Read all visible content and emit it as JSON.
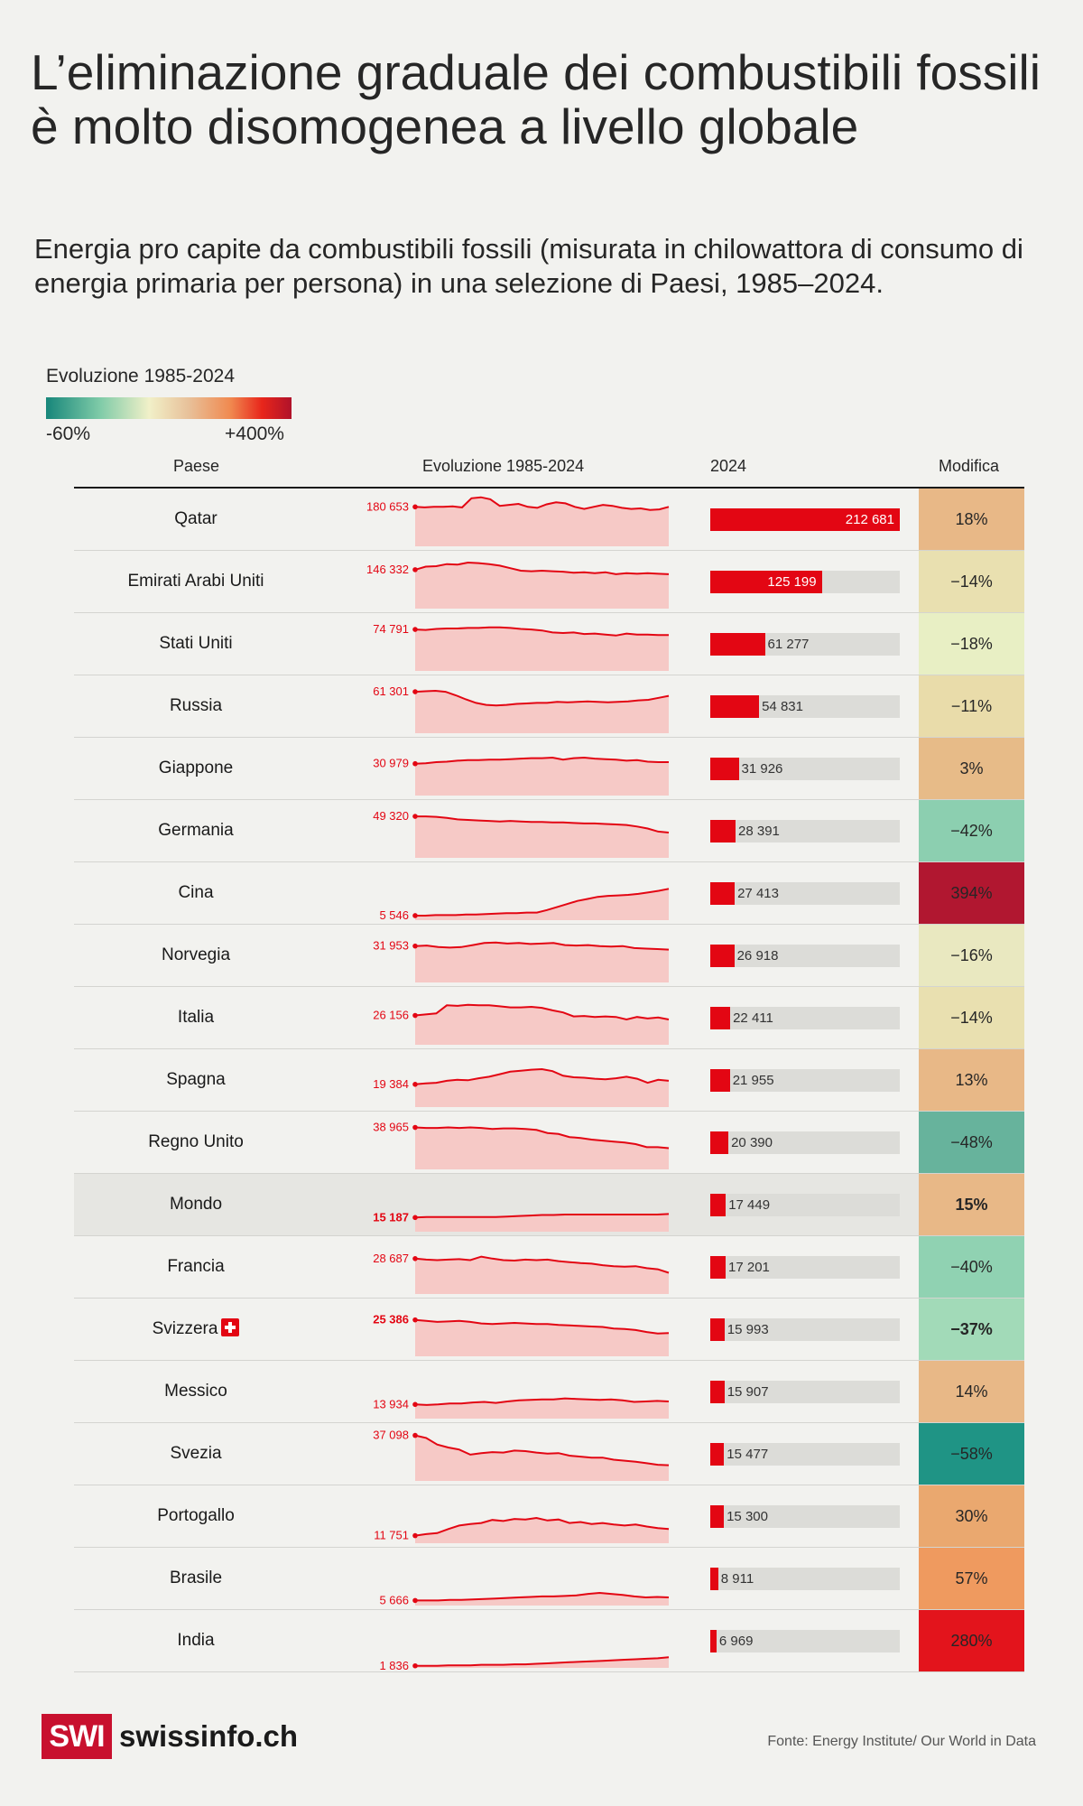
{
  "title": "L’eliminazione graduale dei combustibili fossili è molto disomogenea a livello globale",
  "subtitle": "Energia pro capite da combustibili fossili (misurata in chilowattora di consumo di energia primaria per persona) in una selezione di Paesi, 1985–2024.",
  "legend": {
    "title": "Evoluzione 1985-2024",
    "min_label": "-60%",
    "max_label": "+400%"
  },
  "columns": {
    "country": "Paese",
    "evolution": "Evoluzione 1985-2024",
    "year": "2024",
    "change": "Modifica"
  },
  "colors": {
    "accent": "#e30613",
    "sparkline_fill": "#f6c9c6",
    "bar_track": "#dcdcd8"
  },
  "chart_data": {
    "type": "table",
    "bar_max": 212681,
    "rows": [
      {
        "country": "Qatar",
        "start_1985": 180653,
        "start_label": "180 653",
        "value_2024": 212681,
        "value_label": "212 681",
        "change": "18%",
        "change_color": "#e8b887",
        "trend": [
          0.78,
          0.77,
          0.78,
          0.78,
          0.79,
          0.77,
          0.95,
          0.97,
          0.93,
          0.8,
          0.82,
          0.84,
          0.78,
          0.76,
          0.83,
          0.87,
          0.85,
          0.78,
          0.74,
          0.78,
          0.82,
          0.8,
          0.76,
          0.74,
          0.75,
          0.72,
          0.73,
          0.78
        ]
      },
      {
        "country": "Emirati Arabi Uniti",
        "start_1985": 146332,
        "start_label": "146 332",
        "value_2024": 125199,
        "value_label": "125 199",
        "change": "−14%",
        "change_color": "#e9e0b0",
        "trend": [
          0.77,
          0.83,
          0.84,
          0.88,
          0.87,
          0.91,
          0.9,
          0.88,
          0.85,
          0.8,
          0.75,
          0.74,
          0.75,
          0.74,
          0.73,
          0.71,
          0.72,
          0.7,
          0.72,
          0.68,
          0.7,
          0.69,
          0.7,
          0.69,
          0.68
        ]
      },
      {
        "country": "Stati Uniti",
        "start_1985": 74791,
        "start_label": "74 791",
        "value_2024": 61277,
        "value_label": "61 277",
        "change": "−18%",
        "change_color": "#e8efc4",
        "trend": [
          0.82,
          0.81,
          0.83,
          0.84,
          0.84,
          0.85,
          0.85,
          0.86,
          0.86,
          0.85,
          0.83,
          0.82,
          0.8,
          0.76,
          0.75,
          0.76,
          0.73,
          0.74,
          0.72,
          0.7,
          0.74,
          0.72,
          0.72,
          0.71,
          0.71
        ]
      },
      {
        "country": "Russia",
        "start_1985": 61301,
        "start_label": "61 301",
        "value_2024": 54831,
        "value_label": "54 831",
        "change": "−11%",
        "change_color": "#e9dcaa",
        "trend": [
          0.82,
          0.83,
          0.84,
          0.82,
          0.75,
          0.67,
          0.6,
          0.56,
          0.55,
          0.56,
          0.58,
          0.59,
          0.6,
          0.6,
          0.62,
          0.61,
          0.62,
          0.63,
          0.62,
          0.61,
          0.62,
          0.63,
          0.65,
          0.66,
          0.7,
          0.74
        ]
      },
      {
        "country": "Giappone",
        "start_1985": 30979,
        "start_label": "30 979",
        "value_2024": 31926,
        "value_label": "31 926",
        "change": "3%",
        "change_color": "#e7bb88",
        "trend": [
          0.63,
          0.64,
          0.66,
          0.67,
          0.69,
          0.7,
          0.7,
          0.71,
          0.71,
          0.72,
          0.73,
          0.74,
          0.74,
          0.75,
          0.71,
          0.74,
          0.75,
          0.73,
          0.72,
          0.71,
          0.69,
          0.7,
          0.67,
          0.66,
          0.66
        ]
      },
      {
        "country": "Germania",
        "start_1985": 49320,
        "start_label": "49 320",
        "value_2024": 28391,
        "value_label": "28 391",
        "change": "−42%",
        "change_color": "#8ccfb0",
        "trend": [
          0.82,
          0.82,
          0.81,
          0.79,
          0.76,
          0.75,
          0.74,
          0.73,
          0.72,
          0.73,
          0.72,
          0.71,
          0.71,
          0.7,
          0.7,
          0.69,
          0.68,
          0.68,
          0.67,
          0.66,
          0.65,
          0.62,
          0.58,
          0.52,
          0.5
        ]
      },
      {
        "country": "Cina",
        "start_1985": 5546,
        "start_label": "5 546",
        "value_2024": 27413,
        "value_label": "27 413",
        "change": "394%",
        "change_color": "#b11730",
        "trend": [
          0.09,
          0.09,
          0.1,
          0.1,
          0.1,
          0.11,
          0.11,
          0.12,
          0.13,
          0.14,
          0.14,
          0.15,
          0.15,
          0.2,
          0.26,
          0.32,
          0.38,
          0.42,
          0.46,
          0.48,
          0.49,
          0.5,
          0.52,
          0.55,
          0.58,
          0.62
        ]
      },
      {
        "country": "Norvegia",
        "start_1985": 31953,
        "start_label": "31 953",
        "value_2024": 26918,
        "value_label": "26 918",
        "change": "−16%",
        "change_color": "#e9e8c0",
        "trend": [
          0.72,
          0.73,
          0.7,
          0.69,
          0.7,
          0.74,
          0.78,
          0.79,
          0.77,
          0.78,
          0.76,
          0.77,
          0.78,
          0.74,
          0.73,
          0.74,
          0.72,
          0.71,
          0.72,
          0.68,
          0.67,
          0.66,
          0.65
        ]
      },
      {
        "country": "Italia",
        "start_1985": 26156,
        "start_label": "26 156",
        "value_2024": 22411,
        "value_label": "22 411",
        "change": "−14%",
        "change_color": "#e9e0b0",
        "trend": [
          0.58,
          0.6,
          0.62,
          0.78,
          0.77,
          0.79,
          0.78,
          0.78,
          0.76,
          0.74,
          0.74,
          0.75,
          0.73,
          0.68,
          0.64,
          0.56,
          0.57,
          0.55,
          0.56,
          0.55,
          0.5,
          0.55,
          0.52,
          0.54,
          0.5
        ]
      },
      {
        "country": "Spagna",
        "start_1985": 19384,
        "start_label": "19 384",
        "value_2024": 21955,
        "value_label": "21 955",
        "change": "13%",
        "change_color": "#e8b887",
        "trend": [
          0.45,
          0.47,
          0.48,
          0.52,
          0.54,
          0.53,
          0.57,
          0.6,
          0.65,
          0.7,
          0.72,
          0.74,
          0.75,
          0.71,
          0.62,
          0.59,
          0.58,
          0.56,
          0.55,
          0.57,
          0.6,
          0.56,
          0.48,
          0.54,
          0.52
        ]
      },
      {
        "country": "Regno Unito",
        "start_1985": 38965,
        "start_label": "38 965",
        "value_2024": 20390,
        "value_label": "20 390",
        "change": "−48%",
        "change_color": "#67b39c",
        "trend": [
          0.83,
          0.82,
          0.82,
          0.83,
          0.82,
          0.83,
          0.82,
          0.8,
          0.81,
          0.81,
          0.8,
          0.78,
          0.72,
          0.7,
          0.64,
          0.62,
          0.59,
          0.57,
          0.55,
          0.53,
          0.5,
          0.44,
          0.44,
          0.42
        ]
      },
      {
        "country": "Mondo",
        "start_1985": 15187,
        "start_label": "15 187",
        "value_2024": 17449,
        "value_label": "17 449",
        "change": "15%",
        "change_color": "#e8b887",
        "world": true,
        "trend": [
          0.28,
          0.29,
          0.29,
          0.29,
          0.29,
          0.29,
          0.29,
          0.29,
          0.3,
          0.31,
          0.32,
          0.33,
          0.33,
          0.34,
          0.34,
          0.34,
          0.34,
          0.34,
          0.34,
          0.34,
          0.34,
          0.34,
          0.35
        ]
      },
      {
        "country": "Francia",
        "start_1985": 28687,
        "start_label": "28 687",
        "value_2024": 17201,
        "value_label": "17 201",
        "change": "−40%",
        "change_color": "#90d2b2",
        "trend": [
          0.7,
          0.68,
          0.67,
          0.68,
          0.69,
          0.67,
          0.74,
          0.7,
          0.67,
          0.66,
          0.68,
          0.67,
          0.68,
          0.65,
          0.63,
          0.61,
          0.6,
          0.57,
          0.55,
          0.54,
          0.55,
          0.51,
          0.49,
          0.42
        ]
      },
      {
        "country": "Svizzera",
        "start_1985": 25386,
        "start_label": "25 386",
        "value_2024": 15993,
        "value_label": "15 993",
        "change": "−37%",
        "change_color": "#a2dab8",
        "flag": true,
        "bold": true,
        "trend": [
          0.72,
          0.7,
          0.68,
          0.69,
          0.7,
          0.68,
          0.65,
          0.64,
          0.65,
          0.66,
          0.65,
          0.64,
          0.64,
          0.62,
          0.61,
          0.6,
          0.59,
          0.58,
          0.55,
          0.54,
          0.52,
          0.48,
          0.45,
          0.46
        ]
      },
      {
        "country": "Messico",
        "start_1985": 13934,
        "start_label": "13 934",
        "value_2024": 15907,
        "value_label": "15 907",
        "change": "14%",
        "change_color": "#e8b887",
        "trend": [
          0.28,
          0.27,
          0.28,
          0.3,
          0.3,
          0.32,
          0.33,
          0.31,
          0.34,
          0.36,
          0.37,
          0.38,
          0.38,
          0.4,
          0.39,
          0.38,
          0.37,
          0.38,
          0.36,
          0.33,
          0.34,
          0.35,
          0.34
        ]
      },
      {
        "country": "Svezia",
        "start_1985": 37098,
        "start_label": "37 098",
        "value_2024": 15477,
        "value_label": "15 477",
        "change": "−58%",
        "change_color": "#1f9485",
        "trend": [
          0.9,
          0.85,
          0.72,
          0.66,
          0.62,
          0.52,
          0.55,
          0.57,
          0.56,
          0.6,
          0.59,
          0.56,
          0.54,
          0.55,
          0.5,
          0.48,
          0.46,
          0.46,
          0.42,
          0.4,
          0.38,
          0.35,
          0.32,
          0.31
        ]
      },
      {
        "country": "Portogallo",
        "start_1985": 11751,
        "start_label": "11 751",
        "value_2024": 15300,
        "value_label": "15 300",
        "change": "30%",
        "change_color": "#eaa86f",
        "trend": [
          0.15,
          0.18,
          0.2,
          0.28,
          0.35,
          0.38,
          0.4,
          0.46,
          0.44,
          0.48,
          0.47,
          0.5,
          0.45,
          0.47,
          0.4,
          0.42,
          0.38,
          0.4,
          0.37,
          0.35,
          0.37,
          0.33,
          0.3,
          0.28
        ]
      },
      {
        "country": "Brasile",
        "start_1985": 5666,
        "start_label": "5 666",
        "value_2024": 8911,
        "value_label": "8 911",
        "change": "57%",
        "change_color": "#ef9a5f",
        "trend": [
          0.1,
          0.1,
          0.1,
          0.11,
          0.11,
          0.12,
          0.13,
          0.14,
          0.15,
          0.16,
          0.17,
          0.18,
          0.18,
          0.19,
          0.2,
          0.23,
          0.25,
          0.23,
          0.21,
          0.18,
          0.16,
          0.17,
          0.16
        ]
      },
      {
        "country": "India",
        "start_1985": 1836,
        "start_label": "1 836",
        "value_2024": 6969,
        "value_label": "6 969",
        "change": "280%",
        "change_color": "#e3141c",
        "trend": [
          0.04,
          0.04,
          0.04,
          0.05,
          0.05,
          0.05,
          0.06,
          0.06,
          0.06,
          0.07,
          0.07,
          0.08,
          0.09,
          0.1,
          0.11,
          0.12,
          0.13,
          0.14,
          0.15,
          0.16,
          0.17,
          0.18,
          0.19,
          0.21
        ]
      }
    ]
  },
  "footer": {
    "logo_box": "SWI",
    "logo_text": "swissinfo.ch",
    "source": "Fonte:  Energy Institute/ Our World in Data"
  }
}
